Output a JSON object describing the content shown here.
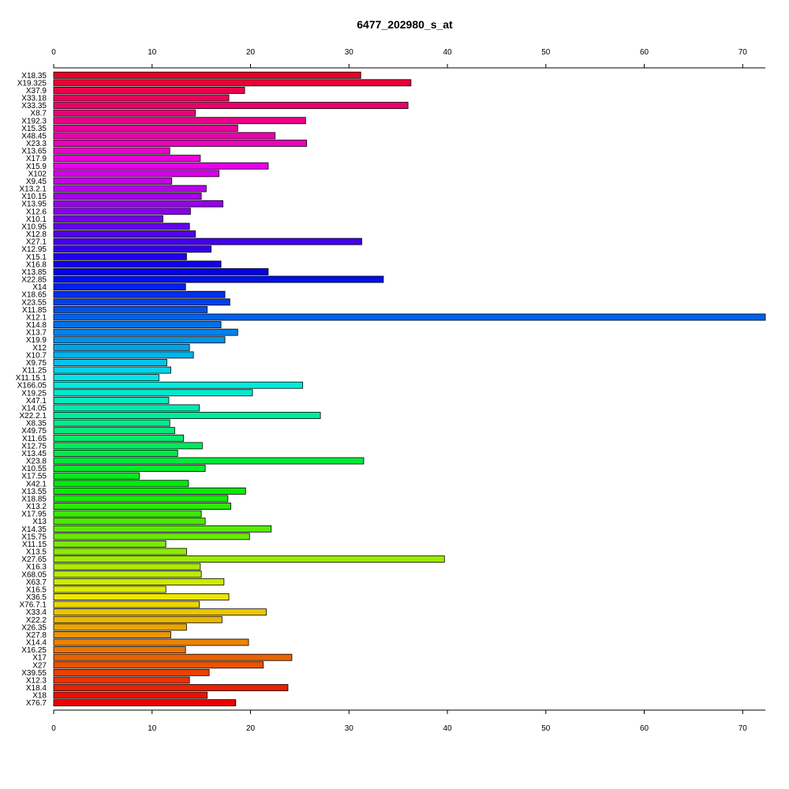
{
  "chart_data": {
    "type": "bar",
    "orientation": "horizontal",
    "title": "6477_202980_s_at",
    "xlabel": "",
    "ylabel": "",
    "xlim": [
      0,
      72.3
    ],
    "x_ticks": [
      0,
      10,
      20,
      30,
      40,
      50,
      60,
      70
    ],
    "x_axes": [
      "top",
      "bottom"
    ],
    "grid": false,
    "legend": "none",
    "color_scheme": "rainbow",
    "categories": [
      "X18.35",
      "X19.325",
      "X37.9",
      "X33.18",
      "X33.35",
      "X8.7",
      "X192.3",
      "X15.35",
      "X48.45",
      "X23.3",
      "X13.65",
      "X17.9",
      "X15.9",
      "X102",
      "X9.45",
      "X13.2.1",
      "X10.15",
      "X13.95",
      "X12.6",
      "X10.1",
      "X10.95",
      "X12.8",
      "X27.1",
      "X12.95",
      "X15.1",
      "X16.8",
      "X13.85",
      "X22.85",
      "X14",
      "X18.65",
      "X23.55",
      "X11.85",
      "X12.1",
      "X14.8",
      "X13.7",
      "X19.9",
      "X12",
      "X10.7",
      "X9.75",
      "X11.25",
      "X11.15.1",
      "X166.05",
      "X19.25",
      "X47.1",
      "X14.05",
      "X22.2.1",
      "X8.35",
      "X49.75",
      "X11.65",
      "X12.75",
      "X13.45",
      "X23.8",
      "X10.55",
      "X17.55",
      "X42.1",
      "X13.55",
      "X18.85",
      "X13.2",
      "X17.95",
      "X13",
      "X14.35",
      "X15.75",
      "X11.15",
      "X13.5",
      "X27.65",
      "X16.3",
      "X68.05",
      "X63.7",
      "X16.5",
      "X36.5",
      "X76.7.1",
      "X33.4",
      "X22.2",
      "X26.35",
      "X27.8",
      "X14.4",
      "X16.25",
      "X17",
      "X27",
      "X39.55",
      "X12.3",
      "X18.4",
      "X18",
      "X76.7"
    ],
    "values": [
      31.2,
      36.3,
      19.4,
      17.8,
      36.0,
      14.4,
      25.6,
      18.7,
      22.5,
      25.7,
      11.8,
      14.9,
      21.8,
      16.8,
      12.0,
      15.5,
      15.0,
      17.2,
      13.9,
      11.1,
      13.8,
      14.4,
      31.3,
      16.0,
      13.5,
      17.0,
      21.8,
      33.5,
      13.4,
      17.4,
      17.9,
      15.6,
      72.3,
      17.0,
      18.7,
      17.4,
      13.8,
      14.2,
      11.5,
      11.9,
      10.7,
      25.3,
      20.2,
      11.7,
      14.8,
      27.1,
      11.8,
      12.3,
      13.2,
      15.1,
      12.6,
      31.5,
      15.4,
      8.7,
      13.7,
      19.5,
      17.7,
      18.0,
      15.0,
      15.4,
      22.1,
      19.9,
      11.4,
      13.5,
      39.7,
      14.9,
      15.0,
      17.3,
      11.4,
      17.8,
      14.8,
      21.6,
      17.1,
      13.5,
      11.9,
      19.8,
      13.4,
      24.2,
      21.3,
      15.8,
      13.8,
      23.8,
      15.6,
      18.5
    ]
  }
}
